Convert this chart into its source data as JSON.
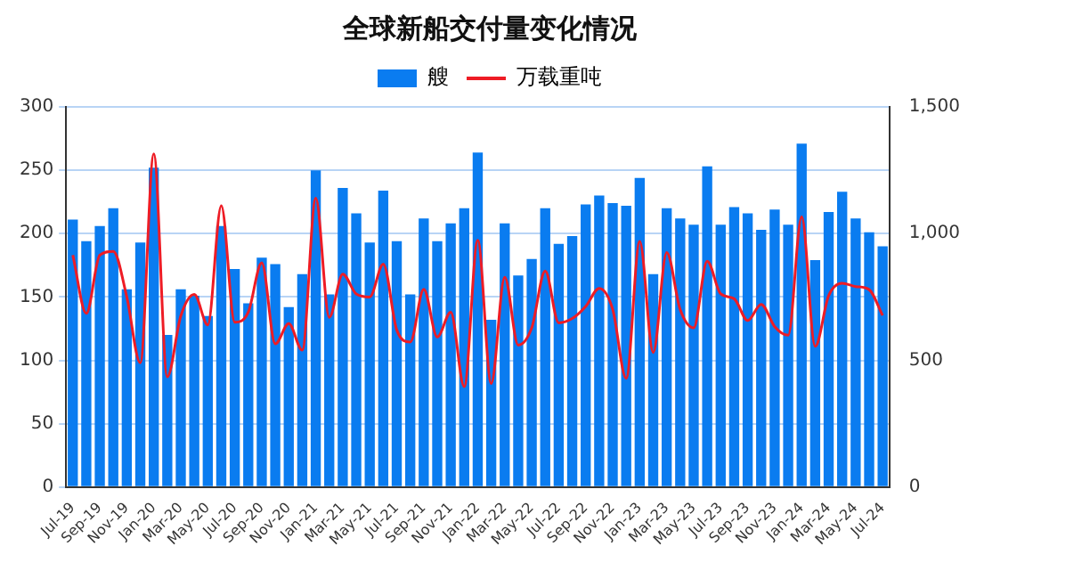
{
  "chart_data": {
    "type": "bar",
    "title": "全球新船交付量变化情况",
    "categories": [
      "Jul-19",
      null,
      "Sep-19",
      null,
      "Nov-19",
      null,
      "Jan-20",
      null,
      "Mar-20",
      null,
      "May-20",
      null,
      "Jul-20",
      null,
      "Sep-20",
      null,
      "Nov-20",
      null,
      "Jan-21",
      null,
      "Mar-21",
      null,
      "May-21",
      null,
      "Jul-21",
      null,
      "Sep-21",
      null,
      "Nov-21",
      null,
      "Jan-22",
      null,
      "Mar-22",
      null,
      "May-22",
      null,
      "Jul-22",
      null,
      "Sep-22",
      null,
      "Nov-22",
      null,
      "Jan-23",
      null,
      "Mar-23",
      null,
      "May-23",
      null,
      "Jul-23",
      null,
      "Sep-23",
      null,
      "Nov-23",
      null,
      "Jan-24",
      null,
      "Mar-24",
      null,
      "May-24",
      null,
      "Jul-24"
    ],
    "series": [
      {
        "name": "艘",
        "color": "#0a7cf0",
        "values": [
          211,
          194,
          206,
          220,
          156,
          193,
          252,
          120,
          156,
          151,
          135,
          206,
          172,
          145,
          181,
          176,
          142,
          168,
          250,
          152,
          236,
          216,
          193,
          234,
          194,
          152,
          212,
          194,
          208,
          220,
          264,
          132,
          208,
          167,
          180,
          220,
          192,
          198,
          223,
          230,
          224,
          222,
          244,
          168,
          220,
          212,
          207,
          253,
          207,
          221,
          216,
          203,
          219,
          207,
          271,
          179,
          217,
          233,
          212,
          201,
          190
        ]
      },
      {
        "name": "万载重吨",
        "type": "line",
        "axis": "y2",
        "color": "#ee1c25",
        "values": [
          915,
          685,
          915,
          930,
          750,
          490,
          1315,
          435,
          675,
          760,
          640,
          1110,
          650,
          690,
          885,
          565,
          645,
          540,
          1140,
          670,
          840,
          762,
          750,
          880,
          620,
          572,
          780,
          592,
          690,
          396,
          974,
          409,
          828,
          560,
          628,
          852,
          648,
          665,
          713,
          784,
          701,
          429,
          969,
          531,
          925,
          700,
          628,
          891,
          762,
          743,
          657,
          721,
          633,
          599,
          1067,
          555,
          755,
          804,
          791,
          779,
          677
        ]
      }
    ],
    "ylim": [
      0,
      300
    ],
    "yticks": [
      0,
      50,
      100,
      150,
      200,
      250,
      300
    ],
    "y2lim": [
      0,
      1500
    ],
    "y2ticks": [
      0,
      500,
      {
        "value": 1000,
        "label": "1,000"
      },
      {
        "value": 1500,
        "label": "1,500"
      }
    ],
    "grid": "y",
    "legend": "top",
    "marker": "none",
    "line_style": "solid"
  }
}
